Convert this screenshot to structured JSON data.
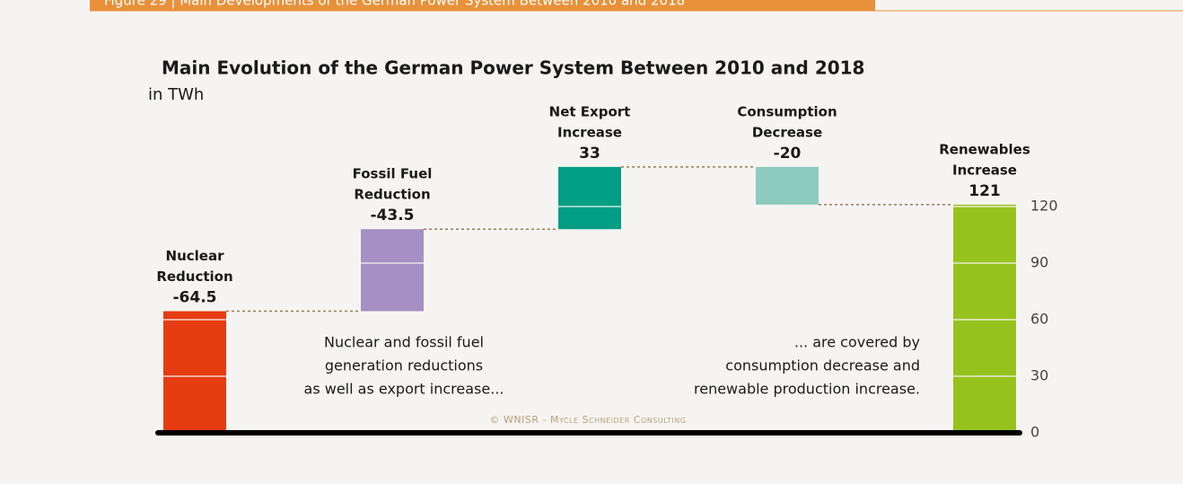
{
  "header": "Figure 29 | Main Developments of the German Power System Between 2010 and 2018",
  "chart_data": {
    "type": "waterfall",
    "title": "Main Evolution of the German Power System Between 2010 and 2018",
    "subtitle": "in TWh",
    "categories": [
      [
        "Nuclear",
        "Reduction"
      ],
      [
        "Fossil Fuel",
        "Reduction"
      ],
      [
        "Net Export",
        "Increase"
      ],
      [
        "Consumption",
        "Decrease"
      ],
      [
        "Renewables",
        "Increase"
      ]
    ],
    "values": [
      -64.5,
      -43.5,
      33,
      -20,
      121
    ],
    "colors": [
      "#e63c12",
      "#a58fc4",
      "#009e84",
      "#8ccbbf",
      "#97c21e"
    ],
    "ylim": [
      0,
      150
    ],
    "yticks": [
      0,
      30,
      60,
      90,
      120
    ],
    "annotations": [
      [
        "Nuclear and fossil fuel",
        "generation reductions",
        "as well as export increase..."
      ],
      [
        "... are covered by",
        "consumption decrease and",
        "renewable production increase."
      ]
    ],
    "credit": "© WNISR - Mycle Schneider Consulting"
  }
}
